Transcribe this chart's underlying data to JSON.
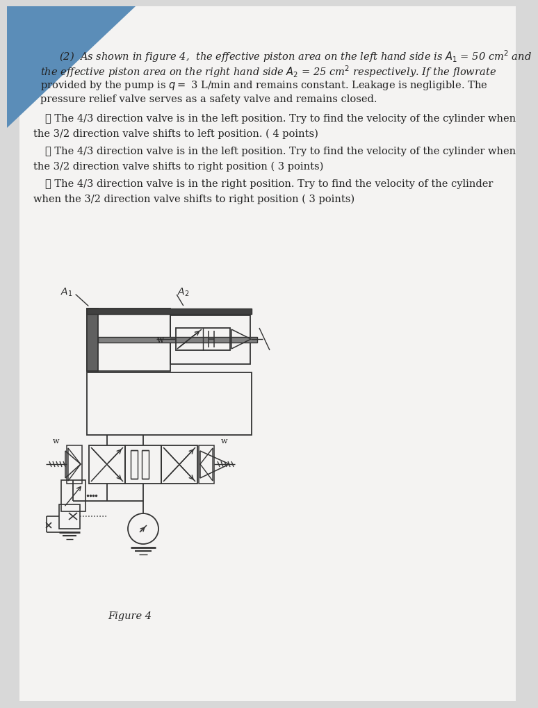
{
  "bg_color": "#d8d8d8",
  "paper_color": "#f0efee",
  "text_color": "#222222",
  "line_color": "#333333",
  "figure_label": "Figure 4",
  "para_lines": [
    "(2)  As shown in figure 4,  the effective piston area on the left hand side is                         = 50 cm² and",
    "the effective piston area on the right hand side             = 25 cm² respectively. If the flowrate",
    "provided by the pump is     3 L/min and remains constant. Leakage is negligible. The",
    "pressure relief valve serves as a safety valve and remains closed."
  ],
  "item1_l1": "① The 4/3 direction valve is in the left position. Try to find the velocity of the cylinder when",
  "item1_l2": "the 3/2 direction valve shifts to left position. ( 4 points)",
  "item2_l1": "② The 4/3 direction valve is in the left position. Try to find the velocity of the cylinder when",
  "item2_l2": "the 3/2 direction valve shifts to right position ( 3 points)",
  "item3_l1": "③ The 4/3 direction valve is in the right position. Try to find the velocity of the cylinder",
  "item3_l2": "when the 3/2 direction valve shifts to right position ( 3 points)"
}
